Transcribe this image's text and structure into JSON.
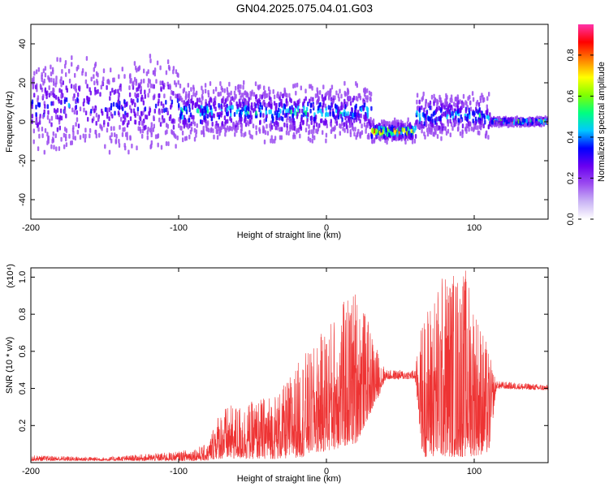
{
  "title": "GN04.2025.075.04.01.G03",
  "colors": {
    "snr_line": "#ee3333",
    "colormap": [
      "#ffffff",
      "#c9b3f5",
      "#9b4cf0",
      "#6a00f0",
      "#0000ff",
      "#00c8ff",
      "#00ff80",
      "#80ff00",
      "#ffff00",
      "#ff8000",
      "#ff0000",
      "#ff33aa"
    ]
  },
  "chart_data": [
    {
      "type": "heatmap",
      "title": "GN04.2025.075.04.01.G03",
      "xlabel": "Height of straight line (km)",
      "ylabel": "Frequency (Hz)",
      "xlim": [
        -200,
        150
      ],
      "ylim": [
        -50,
        50
      ],
      "xticks": [
        "-200",
        "-100",
        "0",
        "100"
      ],
      "xtick_values": [
        -200,
        -100,
        0,
        100
      ],
      "yticks": [
        "-40",
        "-20",
        "0",
        "20",
        "40"
      ],
      "ytick_values": [
        -40,
        -20,
        0,
        20,
        40
      ],
      "colorbar": {
        "label": "Normalized spectral amplitude",
        "range": [
          0,
          0.95
        ],
        "ticks": [
          "0.0",
          "0.2",
          "0.4",
          "0.6",
          "0.8"
        ],
        "tick_values": [
          0.0,
          0.2,
          0.4,
          0.6,
          0.8
        ]
      },
      "segments": [
        {
          "x_range": [
            -200,
            -100
          ],
          "center_hz": 8,
          "peak_amplitude": 0.3,
          "spread_hz": 50
        },
        {
          "x_range": [
            -100,
            30
          ],
          "center_hz": 5,
          "peak_amplitude": 0.45,
          "spread_hz": 25
        },
        {
          "x_range": [
            30,
            60
          ],
          "center_hz": -5,
          "peak_amplitude": 0.9,
          "spread_hz": 8
        },
        {
          "x_range": [
            60,
            110
          ],
          "center_hz": 3,
          "peak_amplitude": 0.45,
          "spread_hz": 20
        },
        {
          "x_range": [
            110,
            150
          ],
          "center_hz": 0,
          "peak_amplitude": 0.7,
          "spread_hz": 3
        }
      ]
    },
    {
      "type": "line",
      "xlabel": "Height of straight line (km)",
      "ylabel": "SNR (10 * v/v)",
      "y_multiplier": "(x10⁴)",
      "xlim": [
        -200,
        150
      ],
      "ylim": [
        0,
        1.05
      ],
      "xticks": [
        "-200",
        "-100",
        "0",
        "100"
      ],
      "xtick_values": [
        -200,
        -100,
        0,
        100
      ],
      "yticks": [
        "0.2",
        "0.4",
        "0.6",
        "0.8",
        "1.0"
      ],
      "ytick_values": [
        0.2,
        0.4,
        0.6,
        0.8,
        1.0
      ],
      "envelope": {
        "x": [
          -200,
          -150,
          -100,
          -80,
          -75,
          -70,
          -50,
          -30,
          -15,
          -10,
          0,
          20,
          35,
          40,
          50,
          60,
          65,
          80,
          95,
          110,
          115,
          150
        ],
        "lower": [
          0.01,
          0.01,
          0.01,
          0.01,
          0.02,
          0.02,
          0.02,
          0.02,
          0.03,
          0.05,
          0.06,
          0.1,
          0.35,
          0.45,
          0.45,
          0.45,
          0.03,
          0.03,
          0.03,
          0.05,
          0.4,
          0.39
        ],
        "upper": [
          0.04,
          0.03,
          0.06,
          0.1,
          0.25,
          0.3,
          0.33,
          0.4,
          0.6,
          0.6,
          0.75,
          0.96,
          0.6,
          0.5,
          0.5,
          0.5,
          0.8,
          1.05,
          1.05,
          0.6,
          0.44,
          0.42
        ]
      }
    }
  ]
}
